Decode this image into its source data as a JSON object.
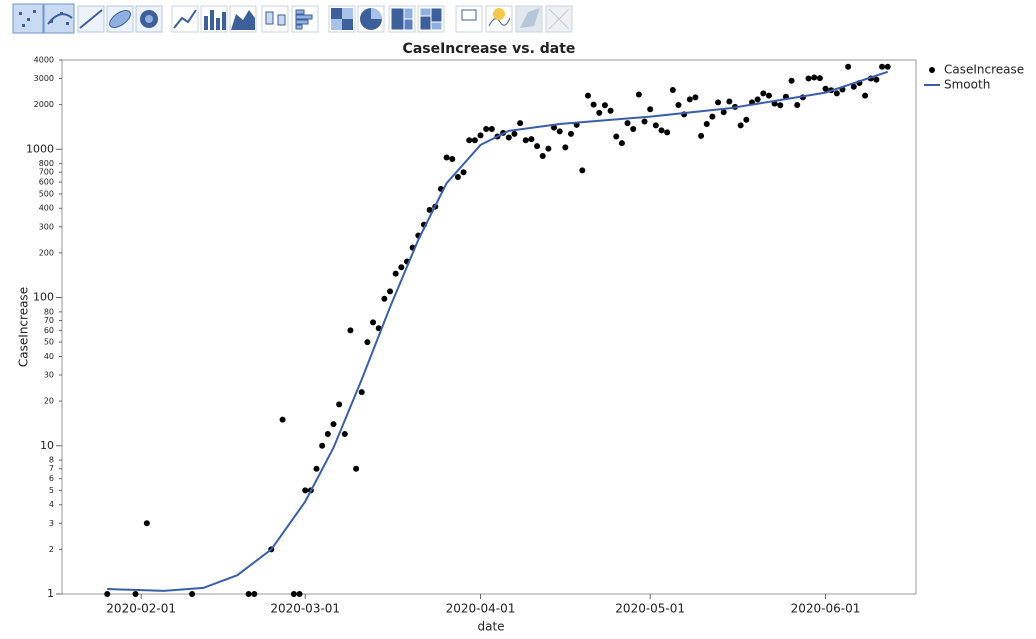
{
  "chart_data": {
    "type": "scatter",
    "title": "CaseIncrease vs. date",
    "x_label": "date",
    "y_label": "CaseIncrease",
    "y_scale": "log",
    "legend": "right",
    "grid": false,
    "xlim": [
      "2020-01-18",
      "2020-06-17"
    ],
    "xticks": [
      "2020-02-01",
      "2020-03-01",
      "2020-04-01",
      "2020-05-01",
      "2020-06-01"
    ],
    "ylim": [
      1,
      4000
    ],
    "yticks": [
      1,
      2,
      3,
      4,
      5,
      6,
      7,
      8,
      10,
      20,
      30,
      40,
      50,
      60,
      70,
      80,
      100,
      200,
      300,
      400,
      500,
      600,
      700,
      800,
      1000,
      2000,
      3000,
      4000
    ],
    "x": [
      "2020-01-26",
      "2020-01-31",
      "2020-02-02",
      "2020-02-10",
      "2020-02-20",
      "2020-02-21",
      "2020-02-24",
      "2020-02-26",
      "2020-02-28",
      "2020-02-29",
      "2020-03-01",
      "2020-03-02",
      "2020-03-03",
      "2020-03-04",
      "2020-03-05",
      "2020-03-06",
      "2020-03-07",
      "2020-03-08",
      "2020-03-09",
      "2020-03-10",
      "2020-03-11",
      "2020-03-12",
      "2020-03-13",
      "2020-03-14",
      "2020-03-15",
      "2020-03-16",
      "2020-03-17",
      "2020-03-18",
      "2020-03-19",
      "2020-03-20",
      "2020-03-21",
      "2020-03-22",
      "2020-03-23",
      "2020-03-24",
      "2020-03-25",
      "2020-03-26",
      "2020-03-27",
      "2020-03-28",
      "2020-03-29",
      "2020-03-30",
      "2020-03-31",
      "2020-04-01",
      "2020-04-02",
      "2020-04-03",
      "2020-04-04",
      "2020-04-05",
      "2020-04-06",
      "2020-04-07",
      "2020-04-08",
      "2020-04-09",
      "2020-04-10",
      "2020-04-11",
      "2020-04-12",
      "2020-04-13",
      "2020-04-14",
      "2020-04-15",
      "2020-04-16",
      "2020-04-17",
      "2020-04-18",
      "2020-04-19",
      "2020-04-20",
      "2020-04-21",
      "2020-04-22",
      "2020-04-23",
      "2020-04-24",
      "2020-04-25",
      "2020-04-26",
      "2020-04-27",
      "2020-04-28",
      "2020-04-29",
      "2020-04-30",
      "2020-05-01",
      "2020-05-02",
      "2020-05-03",
      "2020-05-04",
      "2020-05-05",
      "2020-05-06",
      "2020-05-07",
      "2020-05-08",
      "2020-05-09",
      "2020-05-10",
      "2020-05-11",
      "2020-05-12",
      "2020-05-13",
      "2020-05-14",
      "2020-05-15",
      "2020-05-16",
      "2020-05-17",
      "2020-05-18",
      "2020-05-19",
      "2020-05-20",
      "2020-05-21",
      "2020-05-22",
      "2020-05-23",
      "2020-05-24",
      "2020-05-25",
      "2020-05-26",
      "2020-05-27",
      "2020-05-28",
      "2020-05-29",
      "2020-05-30",
      "2020-05-31",
      "2020-06-01",
      "2020-06-02",
      "2020-06-03",
      "2020-06-04",
      "2020-06-05",
      "2020-06-06",
      "2020-06-07",
      "2020-06-08",
      "2020-06-09",
      "2020-06-10",
      "2020-06-11",
      "2020-06-12"
    ],
    "series": [
      {
        "name": "CaseIncrease",
        "color": "#000000",
        "values": [
          1,
          1,
          3,
          1,
          1,
          1,
          2,
          15,
          1,
          1,
          5,
          5,
          7,
          10,
          12,
          14,
          19,
          12,
          60,
          7,
          23,
          50,
          68,
          62,
          98,
          110,
          145,
          160,
          175,
          217,
          262,
          310,
          390,
          410,
          540,
          880,
          860,
          650,
          700,
          1150,
          1150,
          1240,
          1370,
          1370,
          1220,
          1290,
          1200,
          1270,
          1500,
          1150,
          1170,
          1050,
          900,
          1010,
          1400,
          1320,
          1030,
          1270,
          1460,
          720,
          2300,
          2000,
          1760,
          1980,
          1820,
          1220,
          1100,
          1500,
          1370,
          2340,
          1540,
          1860,
          1450,
          1340,
          1300,
          2510,
          1990,
          1720,
          2170,
          2240,
          1230,
          1480,
          1660,
          2070,
          1780,
          2100,
          1930,
          1450,
          1580,
          2070,
          2170,
          2380,
          2300,
          2030,
          1980,
          2260,
          2900,
          1990,
          2240,
          3000,
          3050,
          3020,
          2560,
          2500,
          2380,
          2530,
          3600,
          2640,
          2800,
          2300,
          3000,
          2950,
          3600,
          3600
        ]
      },
      {
        "name": "Smooth",
        "color": "#3b5ea8",
        "type": "line",
        "x": [
          "2020-01-26",
          "2020-02-05",
          "2020-02-12",
          "2020-02-18",
          "2020-02-24",
          "2020-03-01",
          "2020-03-06",
          "2020-03-11",
          "2020-03-16",
          "2020-03-21",
          "2020-03-26",
          "2020-04-01",
          "2020-04-06",
          "2020-04-15",
          "2020-05-01",
          "2020-05-15",
          "2020-06-01",
          "2020-06-12"
        ],
        "values": [
          1.08,
          1.05,
          1.1,
          1.34,
          2,
          4.2,
          9.7,
          28,
          86,
          245,
          590,
          1070,
          1330,
          1480,
          1660,
          1890,
          2410,
          3330
        ]
      }
    ]
  }
}
